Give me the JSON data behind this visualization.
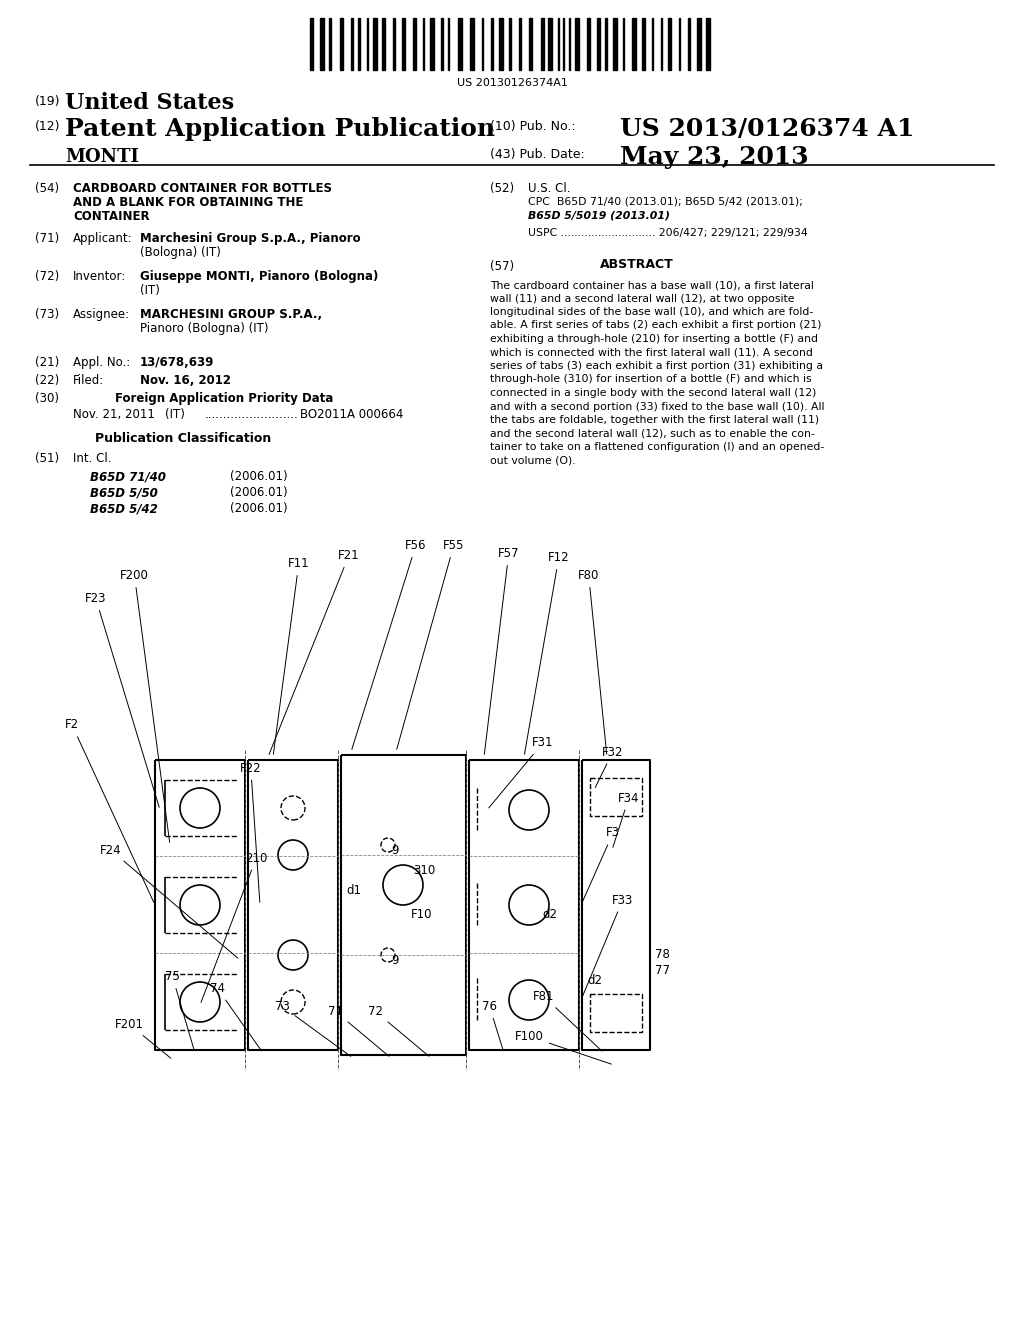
{
  "background_color": "#ffffff",
  "barcode_text": "US 20130126374A1",
  "header_19": "(19)",
  "header_united_states": "United States",
  "header_12": "(12)",
  "header_patent": "Patent Application Publication",
  "header_10": "(10) Pub. No.:",
  "header_pubno": "US 2013/0126374 A1",
  "header_inventor": "MONTI",
  "header_43": "(43) Pub. Date:",
  "header_pubdate": "May 23, 2013",
  "field54_label": "(54)",
  "field54_title1": "CARDBOARD CONTAINER FOR BOTTLES",
  "field54_title2": "AND A BLANK FOR OBTAINING THE",
  "field54_title3": "CONTAINER",
  "field52_label": "(52)",
  "field52_title": "U.S. Cl.",
  "field52_cpc": "CPC  B65D 71/40 (2013.01); B65D 5/42 (2013.01);",
  "field52_cpc2": "B65D 5/5019 (2013.01)",
  "field52_uspc": "USPC ............................ 206/427; 229/121; 229/934",
  "field71_label": "(71)",
  "field71_title": "Applicant:",
  "field71_val": "Marchesini Group S.p.A., Pianoro",
  "field71_val2": "(Bologna) (IT)",
  "field57_label": "(57)",
  "field57_abstract": "ABSTRACT",
  "field72_label": "(72)",
  "field72_title": "Inventor:",
  "field72_val": "Giuseppe MONTI, Pianoro (Bologna)",
  "field72_val2": "(IT)",
  "abstract_lines": [
    "The cardboard container has a base wall (10), a first lateral",
    "wall (11) and a second lateral wall (12), at two opposite",
    "longitudinal sides of the base wall (10), and which are fold-",
    "able. A first series of tabs (2) each exhibit a first portion (21)",
    "exhibiting a through-hole (210) for inserting a bottle (F) and",
    "which is connected with the first lateral wall (11). A second",
    "series of tabs (3) each exhibit a first portion (31) exhibiting a",
    "through-hole (310) for insertion of a bottle (F) and which is",
    "connected in a single body with the second lateral wall (12)",
    "and with a second portion (33) fixed to the base wall (10). All",
    "the tabs are foldable, together with the first lateral wall (11)",
    "and the second lateral wall (12), such as to enable the con-",
    "tainer to take on a flattened configuration (I) and an opened-",
    "out volume (O)."
  ],
  "field73_label": "(73)",
  "field73_title": "Assignee:",
  "field73_val": "MARCHESINI GROUP S.P.A.,",
  "field73_val2": "Pianoro (Bologna) (IT)",
  "field21_label": "(21)",
  "field21_title": "Appl. No.:",
  "field21_val": "13/678,639",
  "field22_label": "(22)",
  "field22_title": "Filed:",
  "field22_val": "Nov. 16, 2012",
  "field30_label": "(30)",
  "field30_title": "Foreign Application Priority Data",
  "field30_date": "Nov. 21, 2011",
  "field30_country": "(IT)",
  "field30_dots": ".........................",
  "field30_num": "BO2011A 000664",
  "pub_class_title": "Publication Classification",
  "field51_label": "(51)",
  "field51_title": "Int. Cl.",
  "field51_b1": "B65D 71/40",
  "field51_b1y": "(2006.01)",
  "field51_b2": "B65D 5/50",
  "field51_b2y": "(2006.01)",
  "field51_b3": "B65D 5/42",
  "field51_b3y": "(2006.01)"
}
